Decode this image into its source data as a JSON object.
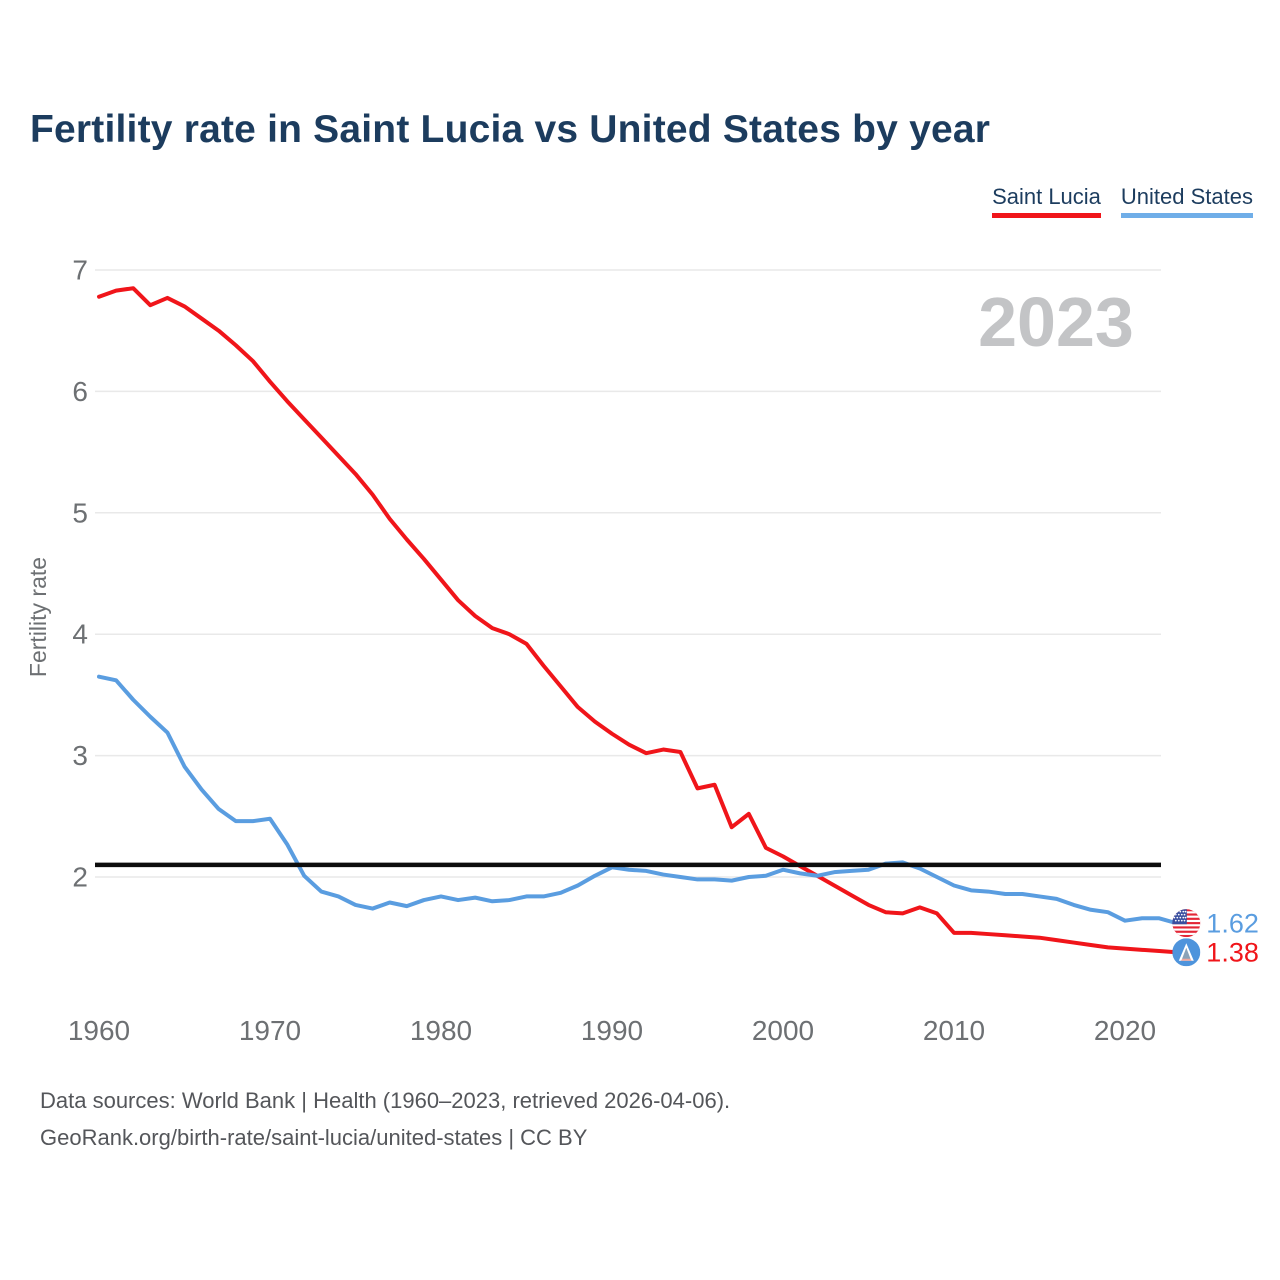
{
  "title": "Fertility rate in Saint Lucia vs United States by year",
  "watermark_year": "2023",
  "legend": {
    "items": [
      {
        "label": "Saint Lucia",
        "color": "#f0151a"
      },
      {
        "label": "United States",
        "color": "#70aee8"
      }
    ]
  },
  "footer": {
    "line1": "Data sources: World Bank | Health (1960–2023, retrieved 2026-04-06).",
    "line2": "GeoRank.org/birth-rate/saint-lucia/united-states | CC BY"
  },
  "colors": {
    "saint_lucia_line": "#f0151a",
    "united_states_line": "#5a9de0",
    "reference_line": "#0d0d0d",
    "title_text": "#1c3c5e",
    "axis_text": "#6d7073",
    "watermark_text": "#c3c4c6",
    "gridline": "#e9e9e9",
    "footer_text": "#54565a"
  },
  "chart_data": {
    "type": "line",
    "title": "Fertility rate in Saint Lucia vs United States by year",
    "xlabel": "",
    "ylabel": "Fertility rate",
    "legend_position": "top-right",
    "grid": "horizontal",
    "ylim": [
      1.3,
      7
    ],
    "xlim": [
      1960,
      2023
    ],
    "yticks": [
      7,
      6,
      5,
      4,
      3,
      2
    ],
    "xticks": [
      1960,
      1970,
      1980,
      1990,
      2000,
      2010,
      2020
    ],
    "reference_line": {
      "value": 2.1
    },
    "x": [
      1960,
      1961,
      1962,
      1963,
      1964,
      1965,
      1966,
      1967,
      1968,
      1969,
      1970,
      1971,
      1972,
      1973,
      1974,
      1975,
      1976,
      1977,
      1978,
      1979,
      1980,
      1981,
      1982,
      1983,
      1984,
      1985,
      1986,
      1987,
      1988,
      1989,
      1990,
      1991,
      1992,
      1993,
      1994,
      1995,
      1996,
      1997,
      1998,
      1999,
      2000,
      2001,
      2002,
      2003,
      2004,
      2005,
      2006,
      2007,
      2008,
      2009,
      2010,
      2011,
      2012,
      2013,
      2014,
      2015,
      2016,
      2017,
      2018,
      2019,
      2020,
      2021,
      2022,
      2023
    ],
    "series": [
      {
        "name": "Saint Lucia",
        "color": "#f0151a",
        "flag": "saint-lucia",
        "end_label": "1.38",
        "values": [
          6.78,
          6.83,
          6.85,
          6.71,
          6.77,
          6.7,
          6.6,
          6.5,
          6.38,
          6.25,
          6.08,
          5.92,
          5.77,
          5.62,
          5.47,
          5.32,
          5.15,
          4.95,
          4.78,
          4.62,
          4.45,
          4.28,
          4.15,
          4.05,
          4.0,
          3.92,
          3.74,
          3.57,
          3.4,
          3.28,
          3.18,
          3.09,
          3.02,
          3.05,
          3.03,
          2.73,
          2.76,
          2.41,
          2.52,
          2.24,
          2.17,
          2.09,
          2.01,
          1.93,
          1.85,
          1.77,
          1.71,
          1.7,
          1.75,
          1.7,
          1.54,
          1.54,
          1.53,
          1.52,
          1.51,
          1.5,
          1.48,
          1.46,
          1.44,
          1.42,
          1.41,
          1.4,
          1.39,
          1.38
        ]
      },
      {
        "name": "United States",
        "color": "#5a9de0",
        "flag": "united-states",
        "end_label": "1.62",
        "values": [
          3.65,
          3.62,
          3.46,
          3.32,
          3.19,
          2.91,
          2.72,
          2.56,
          2.46,
          2.46,
          2.48,
          2.27,
          2.01,
          1.88,
          1.84,
          1.77,
          1.74,
          1.79,
          1.76,
          1.81,
          1.84,
          1.81,
          1.83,
          1.8,
          1.81,
          1.84,
          1.84,
          1.87,
          1.93,
          2.01,
          2.08,
          2.06,
          2.05,
          2.02,
          2.0,
          1.98,
          1.98,
          1.97,
          2.0,
          2.01,
          2.06,
          2.03,
          2.01,
          2.04,
          2.05,
          2.06,
          2.11,
          2.12,
          2.07,
          2.0,
          1.93,
          1.89,
          1.88,
          1.86,
          1.86,
          1.84,
          1.82,
          1.77,
          1.73,
          1.71,
          1.64,
          1.66,
          1.66,
          1.62
        ]
      }
    ]
  }
}
